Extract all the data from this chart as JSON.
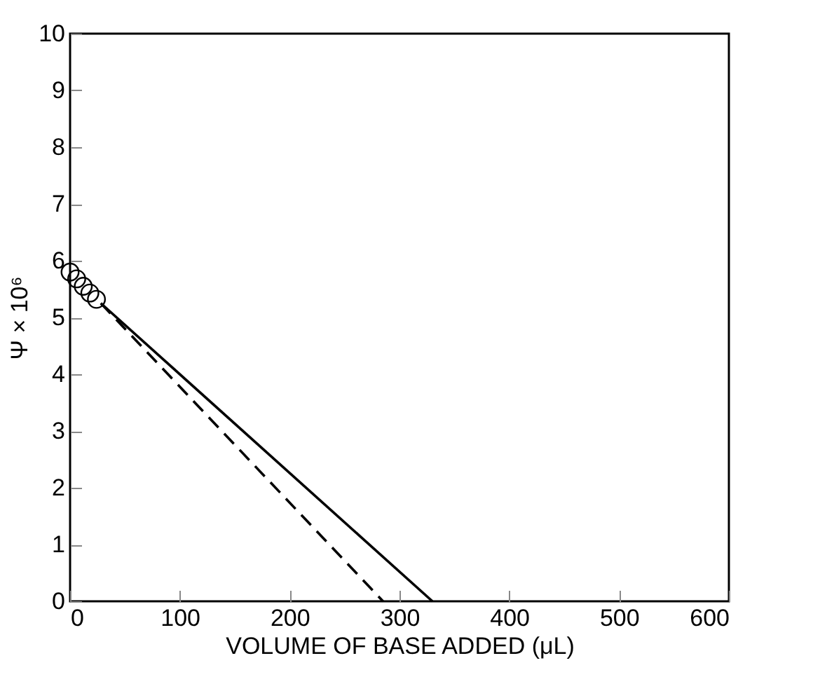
{
  "chart_data": {
    "type": "scatter",
    "xlabel": "VOLUME OF BASE ADDED (μL)",
    "ylabel": "Ψ × 10⁶",
    "xlim": [
      0,
      600
    ],
    "xticks": [
      0,
      100,
      200,
      300,
      400,
      500,
      600
    ],
    "ylim": [
      0,
      10
    ],
    "yticks": [
      0,
      1,
      2,
      3,
      4,
      5,
      6,
      7,
      8,
      9,
      10
    ],
    "grid": false,
    "series": [
      {
        "marker": "circle",
        "color": "#000000",
        "x": [
          0,
          6,
          12,
          18,
          24
        ],
        "values": [
          5.8,
          5.68,
          5.55,
          5.43,
          5.32
        ]
      },
      {
        "type": "line",
        "line_style": "solid",
        "color": "#000000",
        "x": [
          28,
          330
        ],
        "values": [
          5.25,
          0
        ]
      },
      {
        "type": "line",
        "line_style": "dashed",
        "color": "#000000",
        "x": [
          28,
          285
        ],
        "values": [
          5.25,
          0
        ]
      }
    ]
  }
}
